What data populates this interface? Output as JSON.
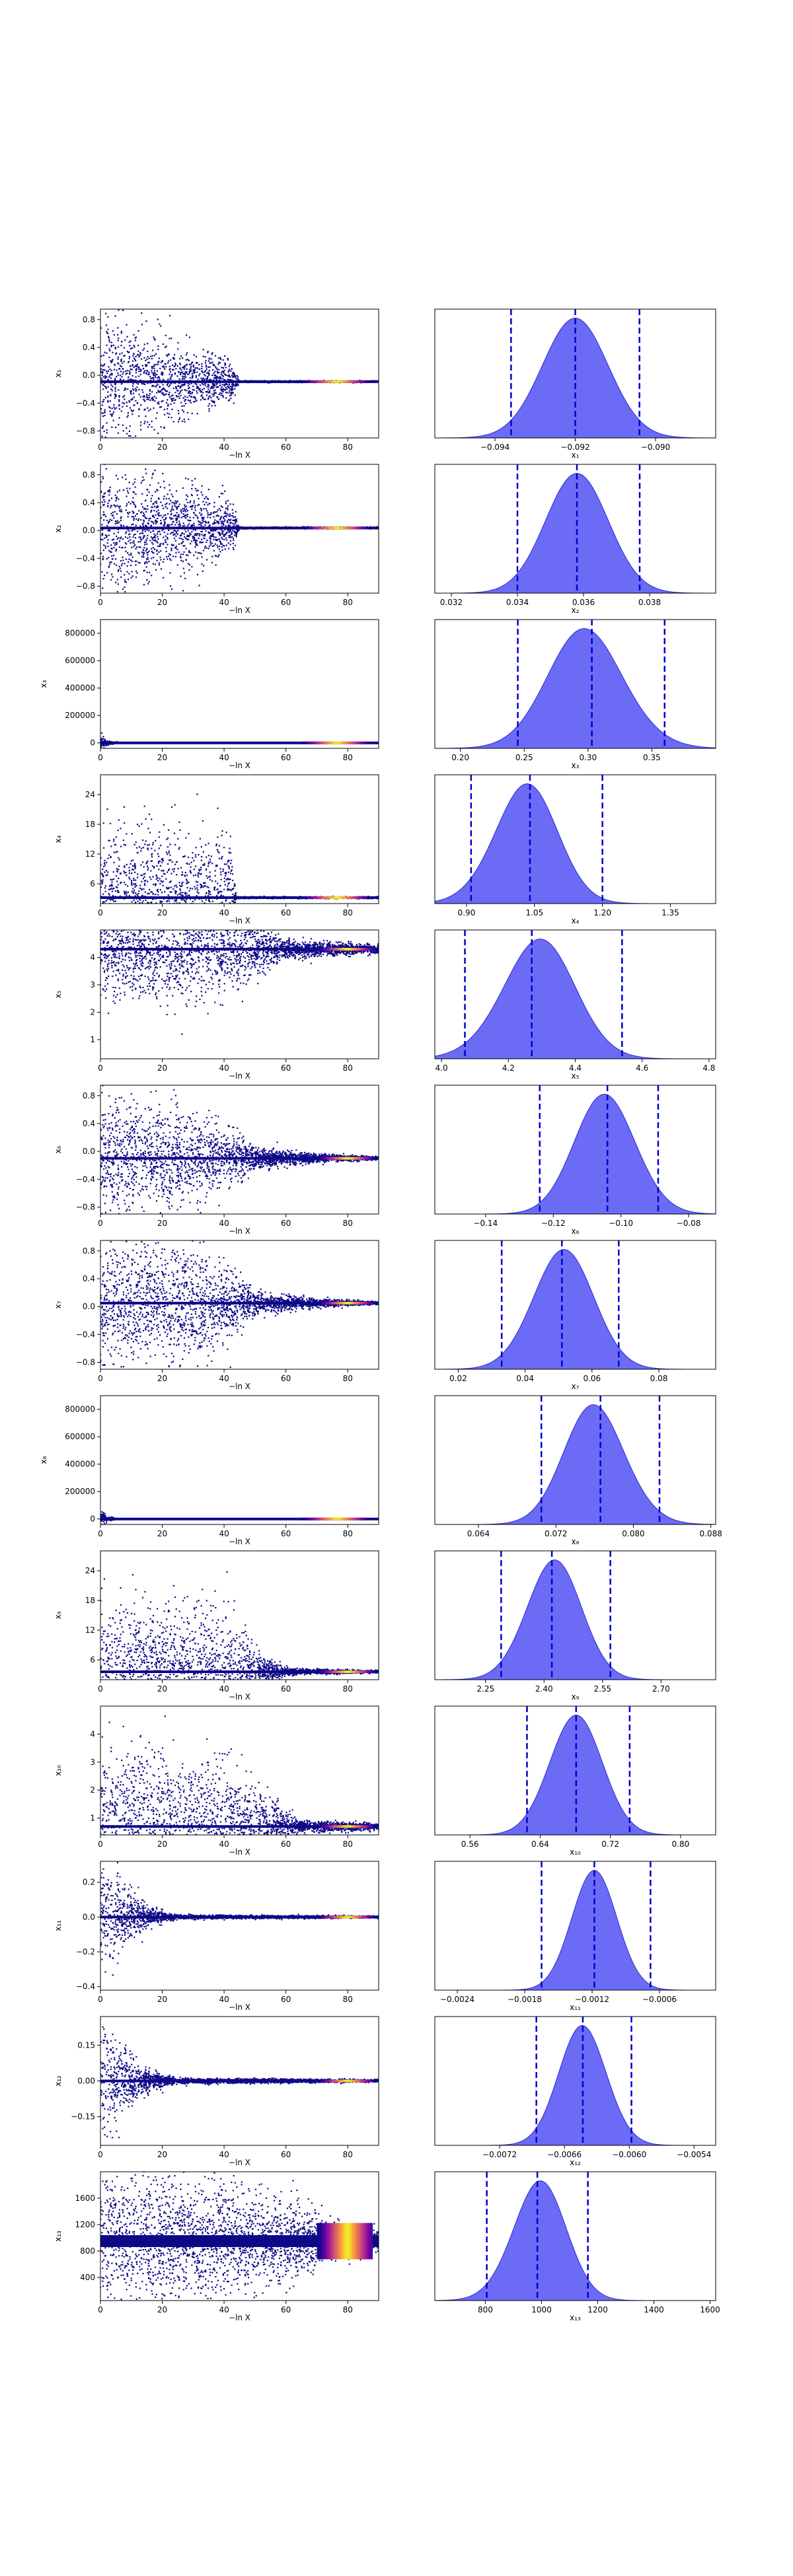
{
  "figure": {
    "xlabel_trace": "−ln X",
    "colors": {
      "trace_base": "#0d0887",
      "trace_hot": [
        "#7e03a8",
        "#cc4778",
        "#f89540",
        "#f0f921"
      ],
      "density_fill": "#5b5bf5",
      "density_edge": "#2a2ad0",
      "quantile_line": "#0000cc"
    },
    "style": {
      "trace_marker": "dot",
      "quantile_line_style": "dashed"
    }
  },
  "chart_data": [
    {
      "type": "scatter",
      "row": 1,
      "ylabel": "x₁",
      "xlim": [
        0,
        90
      ],
      "ylim": [
        -0.9,
        0.95
      ],
      "xticks": [
        0,
        20,
        40,
        60,
        80
      ],
      "yticks": [
        -0.8,
        -0.4,
        0.0,
        0.4,
        0.8
      ],
      "ytick_labels": [
        "−0.8",
        "−0.4",
        "0.0",
        "0.4",
        "0.8"
      ],
      "trace": {
        "converged_value": -0.092,
        "noise_profile": [
          [
            0,
            0.9
          ],
          [
            20,
            0.5
          ],
          [
            42,
            0.25
          ],
          [
            45,
            0.01
          ],
          [
            90,
            0.01
          ]
        ],
        "hot_region": [
          65,
          86
        ]
      },
      "histogram": {
        "xlabel": "x₁",
        "xlim": [
          -0.0955,
          -0.0885
        ],
        "xticks": [
          -0.094,
          -0.092,
          -0.09
        ],
        "xtick_labels": [
          "−0.094",
          "−0.092",
          "−0.090"
        ],
        "mean": -0.092,
        "sd": 0.00082,
        "skew": 0,
        "lo": -0.0936,
        "median": -0.092,
        "hi": -0.0904
      }
    },
    {
      "type": "scatter",
      "row": 2,
      "ylabel": "x₂",
      "xlim": [
        0,
        90
      ],
      "ylim": [
        -0.9,
        0.95
      ],
      "xticks": [
        0,
        20,
        40,
        60,
        80
      ],
      "yticks": [
        -0.8,
        -0.4,
        0.0,
        0.4,
        0.8
      ],
      "ytick_labels": [
        "−0.8",
        "−0.4",
        "0.0",
        "0.4",
        "0.8"
      ],
      "trace": {
        "converged_value": 0.036,
        "noise_profile": [
          [
            0,
            0.9
          ],
          [
            20,
            0.6
          ],
          [
            42,
            0.35
          ],
          [
            45,
            0.01
          ],
          [
            90,
            0.01
          ]
        ],
        "hot_region": [
          65,
          86
        ]
      },
      "histogram": {
        "xlabel": "x₂",
        "xlim": [
          0.0315,
          0.04
        ],
        "xticks": [
          0.032,
          0.034,
          0.036,
          0.038
        ],
        "xtick_labels": [
          "0.032",
          "0.034",
          "0.036",
          "0.038"
        ],
        "mean": 0.0358,
        "sd": 0.00095,
        "skew": 0,
        "lo": 0.034,
        "median": 0.0358,
        "hi": 0.0377
      }
    },
    {
      "type": "scatter",
      "row": 3,
      "ylabel": "x₃",
      "xlim": [
        0,
        90
      ],
      "ylim": [
        -40000,
        900000
      ],
      "xticks": [
        0,
        20,
        40,
        60,
        80
      ],
      "yticks": [
        0,
        200000,
        400000,
        600000,
        800000
      ],
      "ytick_labels": [
        "0",
        "200000",
        "400000",
        "600000",
        "800000"
      ],
      "trace": {
        "converged_value": 0.3,
        "noise_profile": [
          [
            0,
            60000
          ],
          [
            2,
            15000
          ],
          [
            6,
            2000
          ],
          [
            90,
            0
          ]
        ],
        "hot_region": [
          65,
          86
        ]
      },
      "histogram": {
        "xlabel": "x₃",
        "xlim": [
          0.18,
          0.4
        ],
        "xticks": [
          0.2,
          0.25,
          0.3,
          0.35
        ],
        "xtick_labels": [
          "0.20",
          "0.25",
          "0.30",
          "0.35"
        ],
        "mean": 0.303,
        "sd": 0.03,
        "skew": -0.6,
        "lo": 0.245,
        "median": 0.303,
        "hi": 0.36
      }
    },
    {
      "type": "scatter",
      "row": 4,
      "ylabel": "x₄",
      "xlim": [
        0,
        90
      ],
      "ylim": [
        2,
        28
      ],
      "xticks": [
        0,
        20,
        40,
        60,
        80
      ],
      "yticks": [
        6,
        12,
        18,
        24
      ],
      "ytick_labels": [
        "6",
        "12",
        "18",
        "24"
      ],
      "trace": {
        "converged_value": 3.2,
        "noise_profile": [
          [
            0,
            12
          ],
          [
            22,
            12
          ],
          [
            42,
            12
          ],
          [
            44,
            0.15
          ],
          [
            90,
            0.15
          ]
        ],
        "hot_region": [
          65,
          86
        ]
      },
      "histogram": {
        "xlabel": "x₄",
        "xlim": [
          0.83,
          1.45
        ],
        "xticks": [
          0.9,
          1.05,
          1.2,
          1.35
        ],
        "xtick_labels": [
          "0.90",
          "1.05",
          "1.20",
          "1.35"
        ],
        "mean": 1.02,
        "sd": 0.07,
        "skew": 0.6,
        "lo": 0.91,
        "median": 1.04,
        "hi": 1.2
      }
    },
    {
      "type": "scatter",
      "row": 5,
      "ylabel": "x₅",
      "xlim": [
        0,
        90
      ],
      "ylim": [
        0.3,
        5.0
      ],
      "xticks": [
        0,
        20,
        40,
        60,
        80
      ],
      "yticks": [
        1,
        2,
        3,
        4
      ],
      "ytick_labels": [
        "1",
        "2",
        "3",
        "4"
      ],
      "trace": {
        "converged_value": 4.3,
        "noise_profile": [
          [
            0,
            1.8
          ],
          [
            40,
            1.5
          ],
          [
            60,
            0.3
          ],
          [
            90,
            0.15
          ]
        ],
        "hot_region": [
          70,
          88
        ]
      },
      "histogram": {
        "xlabel": "x₅",
        "xlim": [
          3.98,
          4.82
        ],
        "xticks": [
          4.0,
          4.2,
          4.4,
          4.6,
          4.8
        ],
        "xtick_labels": [
          "4.0",
          "4.2",
          "4.4",
          "4.6",
          "4.8"
        ],
        "mean": 4.27,
        "sd": 0.11,
        "skew": 0.7,
        "lo": 4.07,
        "median": 4.27,
        "hi": 4.54
      }
    },
    {
      "type": "scatter",
      "row": 6,
      "ylabel": "x₆",
      "xlim": [
        0,
        90
      ],
      "ylim": [
        -0.9,
        0.95
      ],
      "xticks": [
        0,
        20,
        40,
        60,
        80
      ],
      "yticks": [
        -0.8,
        -0.4,
        0.0,
        0.4,
        0.8
      ],
      "ytick_labels": [
        "−0.8",
        "−0.4",
        "0.0",
        "0.4",
        "0.8"
      ],
      "trace": {
        "converged_value": -0.1,
        "noise_profile": [
          [
            0,
            0.8
          ],
          [
            30,
            0.6
          ],
          [
            50,
            0.15
          ],
          [
            70,
            0.05
          ],
          [
            90,
            0.02
          ]
        ],
        "hot_region": [
          70,
          88
        ]
      },
      "histogram": {
        "xlabel": "x₆",
        "xlim": [
          -0.155,
          -0.072
        ],
        "xticks": [
          -0.14,
          -0.12,
          -0.1,
          -0.08
        ],
        "xtick_labels": [
          "−0.14",
          "−0.12",
          "−0.10",
          "−0.08"
        ],
        "mean": -0.104,
        "sd": 0.009,
        "skew": -0.3,
        "lo": -0.124,
        "median": -0.104,
        "hi": -0.089
      }
    },
    {
      "type": "scatter",
      "row": 7,
      "ylabel": "x₇",
      "xlim": [
        0,
        90
      ],
      "ylim": [
        -0.9,
        0.95
      ],
      "xticks": [
        0,
        20,
        40,
        60,
        80
      ],
      "yticks": [
        -0.8,
        -0.4,
        0.0,
        0.4,
        0.8
      ],
      "ytick_labels": [
        "−0.8",
        "−0.4",
        "0.0",
        "0.4",
        "0.8"
      ],
      "trace": {
        "converged_value": 0.05,
        "noise_profile": [
          [
            0,
            0.85
          ],
          [
            35,
            0.7
          ],
          [
            50,
            0.15
          ],
          [
            70,
            0.05
          ],
          [
            90,
            0.02
          ]
        ],
        "hot_region": [
          70,
          88
        ]
      },
      "histogram": {
        "xlabel": "x₇",
        "xlim": [
          0.013,
          0.097
        ],
        "xticks": [
          0.02,
          0.04,
          0.06,
          0.08
        ],
        "xtick_labels": [
          "0.02",
          "0.04",
          "0.06",
          "0.08"
        ],
        "mean": 0.051,
        "sd": 0.009,
        "skew": 0.2,
        "lo": 0.033,
        "median": 0.051,
        "hi": 0.068
      }
    },
    {
      "type": "scatter",
      "row": 8,
      "ylabel": "x₈",
      "xlim": [
        0,
        90
      ],
      "ylim": [
        -40000,
        900000
      ],
      "xticks": [
        0,
        20,
        40,
        60,
        80
      ],
      "yticks": [
        0,
        200000,
        400000,
        600000,
        800000
      ],
      "ytick_labels": [
        "0",
        "200000",
        "400000",
        "600000",
        "800000"
      ],
      "trace": {
        "converged_value": 0.076,
        "noise_profile": [
          [
            0,
            60000
          ],
          [
            2,
            15000
          ],
          [
            6,
            2000
          ],
          [
            90,
            0
          ]
        ],
        "hot_region": [
          65,
          86
        ]
      },
      "histogram": {
        "xlabel": "x₈",
        "xlim": [
          0.0595,
          0.0885
        ],
        "xticks": [
          0.064,
          0.072,
          0.08,
          0.088
        ],
        "xtick_labels": [
          "0.064",
          "0.072",
          "0.080",
          "0.088"
        ],
        "mean": 0.0765,
        "sd": 0.0032,
        "skew": -0.6,
        "lo": 0.0705,
        "median": 0.0766,
        "hi": 0.0827
      }
    },
    {
      "type": "scatter",
      "row": 9,
      "ylabel": "x₉",
      "xlim": [
        0,
        90
      ],
      "ylim": [
        2,
        28
      ],
      "xticks": [
        0,
        20,
        40,
        60,
        80
      ],
      "yticks": [
        6,
        12,
        18,
        24
      ],
      "ytick_labels": [
        "6",
        "12",
        "18",
        "24"
      ],
      "trace": {
        "converged_value": 3.6,
        "noise_profile": [
          [
            0,
            12
          ],
          [
            40,
            12
          ],
          [
            50,
            4
          ],
          [
            60,
            0.6
          ],
          [
            90,
            0.2
          ]
        ],
        "hot_region": [
          70,
          88
        ]
      },
      "histogram": {
        "xlabel": "x₉",
        "xlim": [
          2.12,
          2.84
        ],
        "xticks": [
          2.25,
          2.4,
          2.55,
          2.7
        ],
        "xtick_labels": [
          "2.25",
          "2.40",
          "2.55",
          "2.70"
        ],
        "mean": 2.42,
        "sd": 0.07,
        "skew": 0.3,
        "lo": 2.29,
        "median": 2.42,
        "hi": 2.57
      }
    },
    {
      "type": "scatter",
      "row": 10,
      "ylabel": "x₁₀",
      "xlim": [
        0,
        90
      ],
      "ylim": [
        0.4,
        5.0
      ],
      "xticks": [
        0,
        20,
        40,
        60,
        80
      ],
      "yticks": [
        1,
        2,
        3,
        4
      ],
      "ytick_labels": [
        "1",
        "2",
        "3",
        "4"
      ],
      "trace": {
        "converged_value": 0.7,
        "noise_profile": [
          [
            0,
            2.5
          ],
          [
            40,
            2.2
          ],
          [
            55,
            0.8
          ],
          [
            65,
            0.2
          ],
          [
            90,
            0.1
          ]
        ],
        "hot_region": [
          70,
          88
        ]
      },
      "histogram": {
        "xlabel": "x₁₀",
        "xlim": [
          0.52,
          0.84
        ],
        "xticks": [
          0.56,
          0.64,
          0.72,
          0.8
        ],
        "xtick_labels": [
          "0.56",
          "0.64",
          "0.72",
          "0.80"
        ],
        "mean": 0.68,
        "sd": 0.03,
        "skew": 0.1,
        "lo": 0.625,
        "median": 0.681,
        "hi": 0.742
      }
    },
    {
      "type": "scatter",
      "row": 11,
      "ylabel": "x₁₁",
      "xlim": [
        0,
        90
      ],
      "ylim": [
        -0.42,
        0.32
      ],
      "xticks": [
        0,
        20,
        40,
        60,
        80
      ],
      "yticks": [
        -0.4,
        -0.2,
        0.0,
        0.2
      ],
      "ytick_labels": [
        "−0.4",
        "−0.2",
        "0.0",
        "0.2"
      ],
      "trace": {
        "converged_value": 0.0,
        "noise_profile": [
          [
            0,
            0.35
          ],
          [
            5,
            0.2
          ],
          [
            15,
            0.05
          ],
          [
            25,
            0.01
          ],
          [
            90,
            0.005
          ]
        ],
        "hot_region": [
          70,
          88
        ]
      },
      "histogram": {
        "xlabel": "x₁₁",
        "xlim": [
          -0.0026,
          -0.0001
        ],
        "xticks": [
          -0.0024,
          -0.0018,
          -0.0012,
          -0.0006
        ],
        "xtick_labels": [
          "−0.0024",
          "−0.0018",
          "−0.0012",
          "−0.0006"
        ],
        "mean": -0.00118,
        "sd": 0.0002,
        "skew": 0,
        "lo": -0.00165,
        "median": -0.00118,
        "hi": -0.00068
      }
    },
    {
      "type": "scatter",
      "row": 12,
      "ylabel": "x₁₂",
      "xlim": [
        0,
        90
      ],
      "ylim": [
        -0.27,
        0.27
      ],
      "xticks": [
        0,
        20,
        40,
        60,
        80
      ],
      "yticks": [
        -0.15,
        0.0,
        0.15
      ],
      "ytick_labels": [
        "−0.15",
        "0.00",
        "0.15"
      ],
      "trace": {
        "converged_value": 0.0,
        "noise_profile": [
          [
            0,
            0.25
          ],
          [
            5,
            0.15
          ],
          [
            15,
            0.04
          ],
          [
            25,
            0.01
          ],
          [
            90,
            0.005
          ]
        ],
        "hot_region": [
          70,
          88
        ]
      },
      "histogram": {
        "xlabel": "x₁₂",
        "xlim": [
          -0.0078,
          -0.0052
        ],
        "xticks": [
          -0.0072,
          -0.0066,
          -0.006,
          -0.0054
        ],
        "xtick_labels": [
          "−0.0072",
          "−0.0066",
          "−0.0060",
          "−0.0054"
        ],
        "mean": -0.00642,
        "sd": 0.00022,
        "skew": -0.2,
        "lo": -0.00686,
        "median": -0.00643,
        "hi": -0.00598
      }
    },
    {
      "type": "scatter",
      "row": 13,
      "ylabel": "x₁₃",
      "xlim": [
        0,
        90
      ],
      "ylim": [
        50,
        2000
      ],
      "xticks": [
        0,
        20,
        40,
        60,
        80
      ],
      "yticks": [
        400,
        800,
        1200,
        1600
      ],
      "ytick_labels": [
        "400",
        "800",
        "1200",
        "1600"
      ],
      "trace": {
        "converged_value": 950,
        "noise_profile": [
          [
            0,
            900
          ],
          [
            40,
            800
          ],
          [
            60,
            600
          ],
          [
            75,
            250
          ],
          [
            90,
            150
          ]
        ],
        "hot_region": [
          70,
          88
        ],
        "hot_wide": true
      },
      "histogram": {
        "xlabel": "x₁₃",
        "xlim": [
          620,
          1620
        ],
        "xticks": [
          800,
          1000,
          1200,
          1400,
          1600
        ],
        "xtick_labels": [
          "800",
          "1000",
          "1200",
          "1400",
          "1600"
        ],
        "mean": 980,
        "sd": 95,
        "skew": 0.5,
        "lo": 805,
        "median": 985,
        "hi": 1165
      }
    }
  ]
}
